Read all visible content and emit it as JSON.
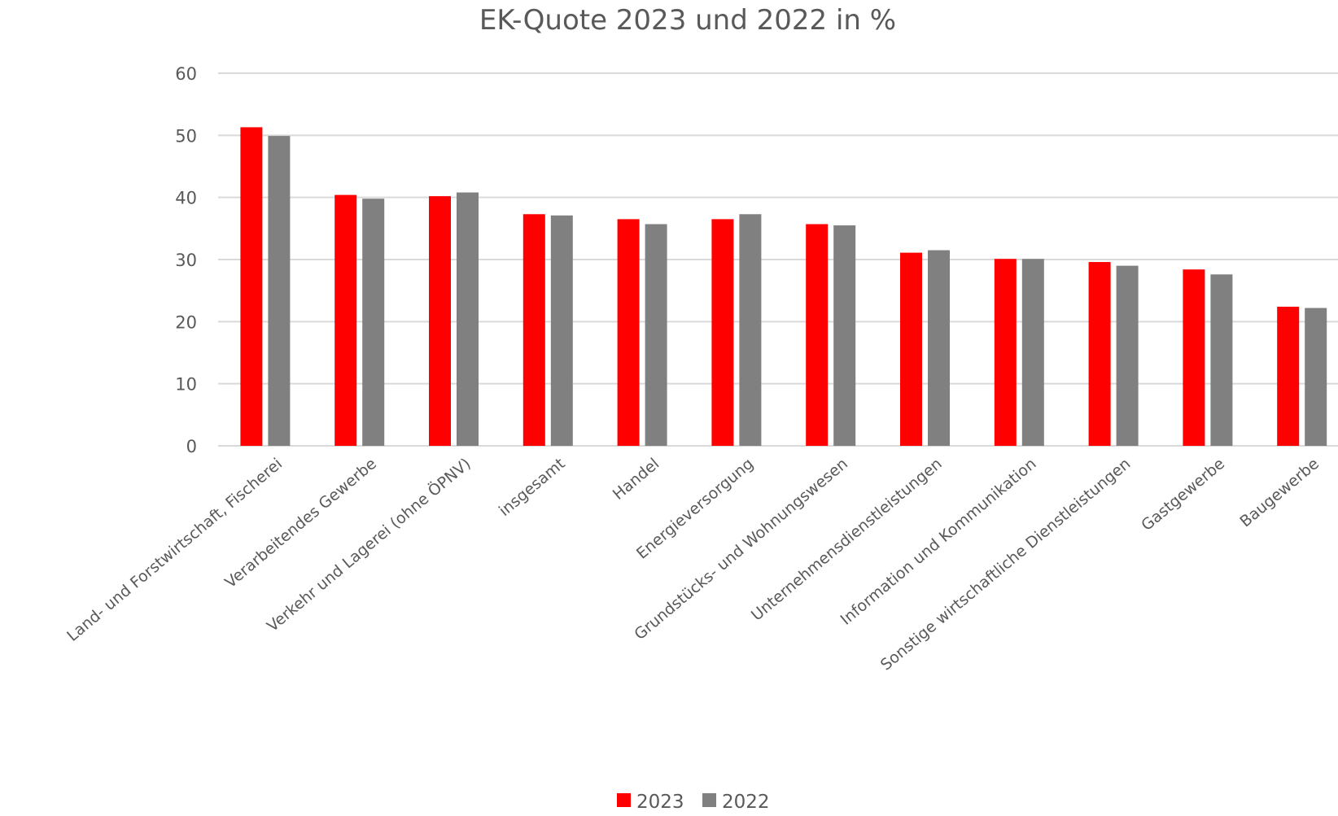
{
  "chart_data": {
    "type": "bar",
    "title": "EK-Quote 2023 und 2022 in %",
    "xlabel": "",
    "ylabel": "",
    "ylim": [
      0,
      60
    ],
    "yticks": [
      0,
      10,
      20,
      30,
      40,
      50,
      60
    ],
    "grid": true,
    "legend_position": "bottom",
    "categories": [
      "Land- und Forstwirtschaft, Fischerei",
      "Verarbeitendes Gewerbe",
      "Verkehr und Lagerei (ohne ÖPNV)",
      "insgesamt",
      "Handel",
      "Energieversorgung",
      "Grundstücks- und Wohnungswesen",
      "Unternehmensdienstleistungen",
      "Information und Kommunikation",
      "Sonstige wirtschaftliche Dienstleistungen",
      "Gastgewerbe",
      "Baugewerbe"
    ],
    "series": [
      {
        "name": "2023",
        "color": "#ff0000",
        "values": [
          51.3,
          40.4,
          40.2,
          37.3,
          36.5,
          36.5,
          35.7,
          31.1,
          30.1,
          29.6,
          28.4,
          22.4
        ]
      },
      {
        "name": "2022",
        "color": "#808080",
        "values": [
          49.9,
          39.8,
          40.8,
          37.1,
          35.7,
          37.3,
          35.5,
          31.5,
          30.1,
          29.0,
          27.6,
          22.2
        ]
      }
    ]
  }
}
